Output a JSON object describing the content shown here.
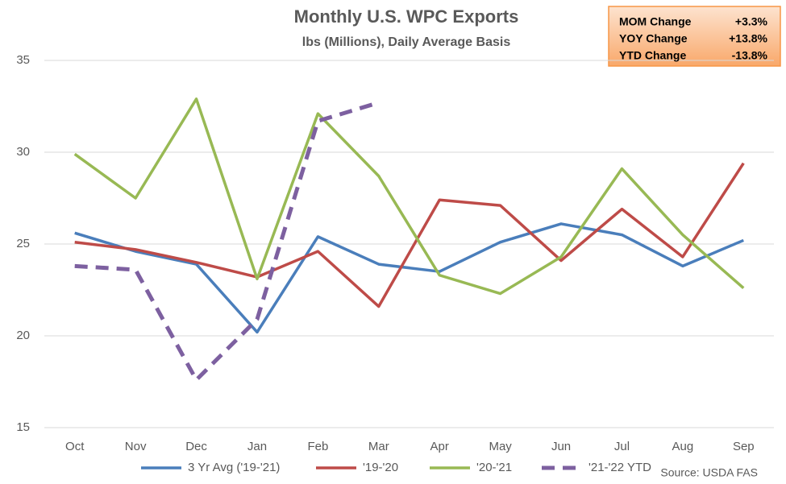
{
  "chart_data": {
    "type": "line",
    "title": "Monthly U.S. WPC Exports",
    "subtitle": "lbs (Millions), Daily Average Basis",
    "categories": [
      "Oct",
      "Nov",
      "Dec",
      "Jan",
      "Feb",
      "Mar",
      "Apr",
      "May",
      "Jun",
      "Jul",
      "Aug",
      "Sep"
    ],
    "series": [
      {
        "name": "3 Yr Avg ('19-'21)",
        "color": "#4a7ebb",
        "dashed": false,
        "values": [
          25.6,
          24.6,
          23.9,
          20.2,
          25.4,
          23.9,
          23.5,
          25.1,
          26.1,
          25.5,
          23.8,
          25.2
        ]
      },
      {
        "name": "'19-'20",
        "color": "#be4b48",
        "dashed": false,
        "values": [
          25.1,
          24.7,
          24.0,
          23.2,
          24.6,
          21.6,
          27.4,
          27.1,
          24.1,
          26.9,
          24.3,
          29.4
        ]
      },
      {
        "name": "'20-'21",
        "color": "#98b954",
        "dashed": false,
        "values": [
          29.9,
          27.5,
          32.9,
          23.1,
          32.1,
          28.7,
          23.3,
          22.3,
          24.3,
          29.1,
          25.5,
          22.6
        ]
      },
      {
        "name": "'21-'22 YTD",
        "color": "#7d60a0",
        "dashed": true,
        "values": [
          23.8,
          23.6,
          17.6,
          20.9,
          31.7,
          32.7,
          null,
          null,
          null,
          null,
          null,
          null
        ]
      }
    ],
    "ylim": [
      15,
      35
    ],
    "yticks": [
      15,
      20,
      25,
      30,
      35
    ],
    "grid": true,
    "info_box": [
      {
        "label": "MOM Change",
        "value": "+3.3%"
      },
      {
        "label": "YOY Change",
        "value": "+13.8%"
      },
      {
        "label": "YTD Change",
        "value": "-13.8%"
      }
    ],
    "source": "Source: USDA FAS"
  }
}
